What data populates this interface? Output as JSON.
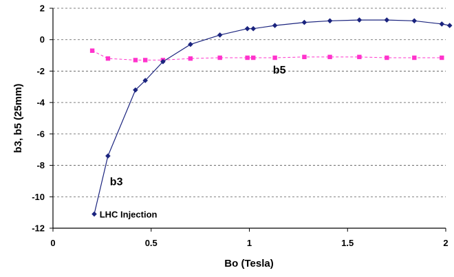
{
  "chart_data": {
    "type": "line",
    "title": "",
    "xlabel": "Bo (Tesla)",
    "ylabel": "b3, b5 (25mm)",
    "xlim": [
      0,
      2
    ],
    "ylim": [
      -12,
      2
    ],
    "x_ticks": [
      "0",
      "0.5",
      "1",
      "1.5",
      "2"
    ],
    "y_ticks": [
      "2",
      "0",
      "-2",
      "-4",
      "-6",
      "-8",
      "-10",
      "-12"
    ],
    "grid": "horizontal dashed",
    "legend": "none",
    "series": [
      {
        "name": "b3",
        "color": "#1a237e",
        "marker": "diamond",
        "line_style": "solid",
        "x": [
          0.21,
          0.28,
          0.42,
          0.47,
          0.56,
          0.7,
          0.85,
          0.99,
          1.02,
          1.13,
          1.28,
          1.41,
          1.56,
          1.7,
          1.84,
          1.98,
          2.02
        ],
        "y": [
          -11.1,
          -7.4,
          -3.2,
          -2.6,
          -1.4,
          -0.3,
          0.3,
          0.7,
          0.7,
          0.9,
          1.1,
          1.2,
          1.25,
          1.25,
          1.2,
          1.0,
          0.9
        ]
      },
      {
        "name": "b5",
        "color": "#ff33cc",
        "marker": "square",
        "line_style": "dashed",
        "x": [
          0.2,
          0.28,
          0.42,
          0.47,
          0.56,
          0.7,
          0.85,
          0.99,
          1.02,
          1.13,
          1.28,
          1.41,
          1.56,
          1.7,
          1.84,
          1.98
        ],
        "y": [
          -0.7,
          -1.2,
          -1.3,
          -1.3,
          -1.3,
          -1.2,
          -1.15,
          -1.15,
          -1.15,
          -1.15,
          -1.1,
          -1.1,
          -1.1,
          -1.15,
          -1.15,
          -1.15
        ]
      }
    ],
    "annotations": [
      {
        "text": "b5",
        "x": 1.12,
        "y": -1.9
      },
      {
        "text": "b3",
        "x": 0.29,
        "y": -9.0
      },
      {
        "text": "LHC Injection",
        "x": 0.23,
        "y": -11.1
      }
    ]
  }
}
